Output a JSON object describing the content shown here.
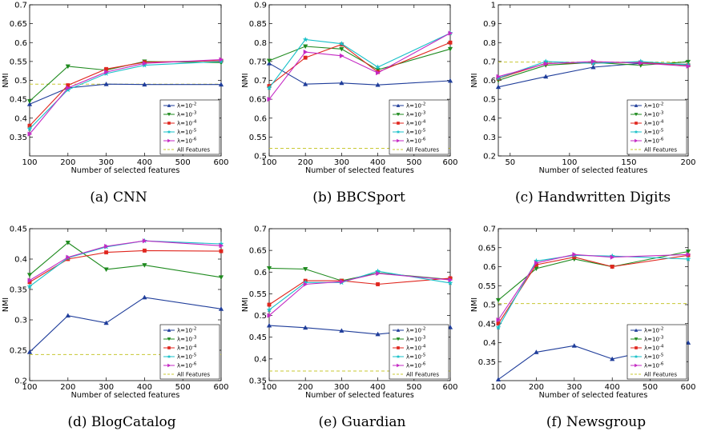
{
  "chart_data": [
    {
      "type": "line",
      "caption": "(a) CNN",
      "xlabel": "Number of selected features",
      "ylabel": "NMI",
      "xlim": [
        100,
        600
      ],
      "ylim": [
        0.3,
        0.7
      ],
      "xticks": [
        100,
        200,
        300,
        400,
        500,
        600
      ],
      "yticks": [
        0.35,
        0.4,
        0.45,
        0.5,
        0.55,
        0.6,
        0.65,
        0.7
      ],
      "ytick_labels": [
        "0.35",
        "0.4",
        "0.45",
        "0.5",
        "0.55",
        "0.6",
        "0.65",
        "0.7"
      ],
      "x": [
        100,
        200,
        300,
        400,
        600
      ],
      "series": [
        {
          "name": "λ=10^-2",
          "color": "#1f3d9a",
          "marker": "triangle-up",
          "values": [
            0.437,
            0.48,
            0.49,
            0.489,
            0.489
          ]
        },
        {
          "name": "λ=10^-3",
          "color": "#1e8a1e",
          "marker": "triangle-down",
          "values": [
            0.445,
            0.537,
            0.527,
            0.55,
            0.547
          ]
        },
        {
          "name": "λ=10^-4",
          "color": "#e0261e",
          "marker": "square",
          "values": [
            0.38,
            0.487,
            0.53,
            0.548,
            0.552
          ]
        },
        {
          "name": "λ=10^-5",
          "color": "#18c0c8",
          "marker": "star",
          "values": [
            0.372,
            0.475,
            0.518,
            0.54,
            0.55
          ]
        },
        {
          "name": "λ=10^-6",
          "color": "#c42ac4",
          "marker": "triangle-right",
          "values": [
            0.358,
            0.48,
            0.522,
            0.545,
            0.555
          ]
        }
      ],
      "baseline": {
        "name": "All Features",
        "color": "#c8c832",
        "value": 0.49
      },
      "legend": "bottom-right"
    },
    {
      "type": "line",
      "caption": "(b) BBCSport",
      "xlabel": "Number of selected features",
      "ylabel": "NMI",
      "xlim": [
        100,
        600
      ],
      "ylim": [
        0.5,
        0.9
      ],
      "xticks": [
        100,
        200,
        300,
        400,
        500,
        600
      ],
      "yticks": [
        0.5,
        0.55,
        0.6,
        0.65,
        0.7,
        0.75,
        0.8,
        0.85,
        0.9
      ],
      "ytick_labels": [
        "0.5",
        "0.55",
        "0.6",
        "0.65",
        "0.7",
        "0.75",
        "0.8",
        "0.85",
        "0.9"
      ],
      "x": [
        100,
        200,
        300,
        400,
        600
      ],
      "series": [
        {
          "name": "λ=10^-2",
          "color": "#1f3d9a",
          "marker": "triangle-up",
          "values": [
            0.745,
            0.69,
            0.693,
            0.688,
            0.699
          ]
        },
        {
          "name": "λ=10^-3",
          "color": "#1e8a1e",
          "marker": "triangle-down",
          "values": [
            0.752,
            0.79,
            0.783,
            0.728,
            0.783
          ]
        },
        {
          "name": "λ=10^-4",
          "color": "#e0261e",
          "marker": "square",
          "values": [
            0.685,
            0.76,
            0.795,
            0.722,
            0.8
          ]
        },
        {
          "name": "λ=10^-5",
          "color": "#18c0c8",
          "marker": "star",
          "values": [
            0.68,
            0.808,
            0.797,
            0.735,
            0.825
          ]
        },
        {
          "name": "λ=10^-6",
          "color": "#c42ac4",
          "marker": "triangle-right",
          "values": [
            0.65,
            0.775,
            0.765,
            0.72,
            0.825
          ]
        }
      ],
      "baseline": {
        "name": "All Features",
        "color": "#c8c832",
        "value": 0.52
      },
      "legend": "bottom-right"
    },
    {
      "type": "line",
      "caption": "(c) Handwritten Digits",
      "xlabel": "Number of selected features",
      "ylabel": "NMI",
      "xlim": [
        40,
        200
      ],
      "ylim": [
        0.2,
        1.0
      ],
      "xticks": [
        50,
        100,
        150,
        200
      ],
      "yticks": [
        0.2,
        0.3,
        0.4,
        0.5,
        0.6,
        0.7,
        0.8,
        0.9,
        1.0
      ],
      "ytick_labels": [
        "0.2",
        "0.3",
        "0.4",
        "0.5",
        "0.6",
        "0.7",
        "0.8",
        "0.9",
        "1"
      ],
      "x": [
        40,
        80,
        120,
        160,
        200
      ],
      "series": [
        {
          "name": "λ=10^-2",
          "color": "#1f3d9a",
          "marker": "triangle-up",
          "values": [
            0.565,
            0.62,
            0.67,
            0.69,
            0.685
          ]
        },
        {
          "name": "λ=10^-3",
          "color": "#1e8a1e",
          "marker": "triangle-down",
          "values": [
            0.6,
            0.68,
            0.695,
            0.68,
            0.698
          ]
        },
        {
          "name": "λ=10^-4",
          "color": "#e0261e",
          "marker": "square",
          "values": [
            0.61,
            0.69,
            0.693,
            0.695,
            0.68
          ]
        },
        {
          "name": "λ=10^-5",
          "color": "#18c0c8",
          "marker": "star",
          "values": [
            0.612,
            0.7,
            0.69,
            0.7,
            0.682
          ]
        },
        {
          "name": "λ=10^-6",
          "color": "#c42ac4",
          "marker": "triangle-right",
          "values": [
            0.62,
            0.688,
            0.7,
            0.692,
            0.675
          ]
        }
      ],
      "baseline": {
        "name": "All Features",
        "color": "#c8c832",
        "value": 0.697
      },
      "legend": "bottom-right"
    },
    {
      "type": "line",
      "caption": "(d) BlogCatalog",
      "xlabel": "Number of selected features",
      "ylabel": "NMI",
      "xlim": [
        100,
        600
      ],
      "ylim": [
        0.2,
        0.45
      ],
      "xticks": [
        100,
        200,
        300,
        400,
        500,
        600
      ],
      "yticks": [
        0.2,
        0.25,
        0.3,
        0.35,
        0.4,
        0.45
      ],
      "ytick_labels": [
        "0.2",
        "0.25",
        "0.3",
        "0.35",
        "0.4",
        "0.45"
      ],
      "x": [
        100,
        200,
        300,
        400,
        600
      ],
      "series": [
        {
          "name": "λ=10^-2",
          "color": "#1f3d9a",
          "marker": "triangle-up",
          "values": [
            0.247,
            0.307,
            0.295,
            0.337,
            0.318
          ]
        },
        {
          "name": "λ=10^-3",
          "color": "#1e8a1e",
          "marker": "triangle-down",
          "values": [
            0.374,
            0.427,
            0.383,
            0.39,
            0.37
          ]
        },
        {
          "name": "λ=10^-4",
          "color": "#e0261e",
          "marker": "square",
          "values": [
            0.362,
            0.4,
            0.411,
            0.414,
            0.413
          ]
        },
        {
          "name": "λ=10^-5",
          "color": "#18c0c8",
          "marker": "star",
          "values": [
            0.355,
            0.402,
            0.42,
            0.43,
            0.425
          ]
        },
        {
          "name": "λ=10^-6",
          "color": "#c42ac4",
          "marker": "triangle-right",
          "values": [
            0.365,
            0.403,
            0.421,
            0.43,
            0.422
          ]
        }
      ],
      "baseline": {
        "name": "All Features",
        "color": "#c8c832",
        "value": 0.243
      },
      "legend": "bottom-right"
    },
    {
      "type": "line",
      "caption": "(e) Guardian",
      "xlabel": "Number of selected features",
      "ylabel": "NMI",
      "xlim": [
        100,
        600
      ],
      "ylim": [
        0.35,
        0.7
      ],
      "xticks": [
        100,
        200,
        300,
        400,
        500,
        600
      ],
      "yticks": [
        0.35,
        0.4,
        0.45,
        0.5,
        0.55,
        0.6,
        0.65,
        0.7
      ],
      "ytick_labels": [
        "0.35",
        "0.4",
        "0.45",
        "0.5",
        "0.55",
        "0.6",
        "0.65",
        "0.7"
      ],
      "x": [
        100,
        200,
        300,
        400,
        600
      ],
      "series": [
        {
          "name": "λ=10^-2",
          "color": "#1f3d9a",
          "marker": "triangle-up",
          "values": [
            0.477,
            0.472,
            0.465,
            0.457,
            0.473
          ]
        },
        {
          "name": "λ=10^-3",
          "color": "#1e8a1e",
          "marker": "triangle-down",
          "values": [
            0.609,
            0.607,
            0.58,
            0.598,
            0.583
          ]
        },
        {
          "name": "λ=10^-4",
          "color": "#e0261e",
          "marker": "square",
          "values": [
            0.525,
            0.58,
            0.58,
            0.572,
            0.586
          ]
        },
        {
          "name": "λ=10^-5",
          "color": "#18c0c8",
          "marker": "star",
          "values": [
            0.513,
            0.576,
            0.576,
            0.602,
            0.575
          ]
        },
        {
          "name": "λ=10^-6",
          "color": "#c42ac4",
          "marker": "triangle-right",
          "values": [
            0.5,
            0.572,
            0.578,
            0.597,
            0.582
          ]
        }
      ],
      "baseline": {
        "name": "All Features",
        "color": "#c8c832",
        "value": 0.372
      },
      "legend": "bottom-right"
    },
    {
      "type": "line",
      "caption": "(f) Newsgroup",
      "xlabel": "Number of selected features",
      "ylabel": "NMI",
      "xlim": [
        100,
        600
      ],
      "ylim": [
        0.3,
        0.7
      ],
      "xticks": [
        100,
        200,
        300,
        400,
        500,
        600
      ],
      "yticks": [
        0.35,
        0.4,
        0.45,
        0.5,
        0.55,
        0.6,
        0.65,
        0.7
      ],
      "ytick_labels": [
        "0.35",
        "0.4",
        "0.45",
        "0.5",
        "0.55",
        "0.6",
        "0.65",
        "0.7"
      ],
      "x": [
        100,
        200,
        300,
        400,
        600
      ],
      "series": [
        {
          "name": "λ=10^-2",
          "color": "#1f3d9a",
          "marker": "triangle-up",
          "values": [
            0.303,
            0.375,
            0.392,
            0.357,
            0.4
          ]
        },
        {
          "name": "λ=10^-3",
          "color": "#1e8a1e",
          "marker": "triangle-down",
          "values": [
            0.512,
            0.595,
            0.62,
            0.6,
            0.64
          ]
        },
        {
          "name": "λ=10^-4",
          "color": "#e0261e",
          "marker": "square",
          "values": [
            0.45,
            0.605,
            0.625,
            0.6,
            0.63
          ]
        },
        {
          "name": "λ=10^-5",
          "color": "#18c0c8",
          "marker": "star",
          "values": [
            0.44,
            0.615,
            0.63,
            0.628,
            0.62
          ]
        },
        {
          "name": "λ=10^-6",
          "color": "#c42ac4",
          "marker": "triangle-right",
          "values": [
            0.46,
            0.61,
            0.632,
            0.625,
            0.632
          ]
        }
      ],
      "baseline": {
        "name": "All Features",
        "color": "#c8c832",
        "value": 0.503
      },
      "legend": "bottom-right"
    }
  ]
}
